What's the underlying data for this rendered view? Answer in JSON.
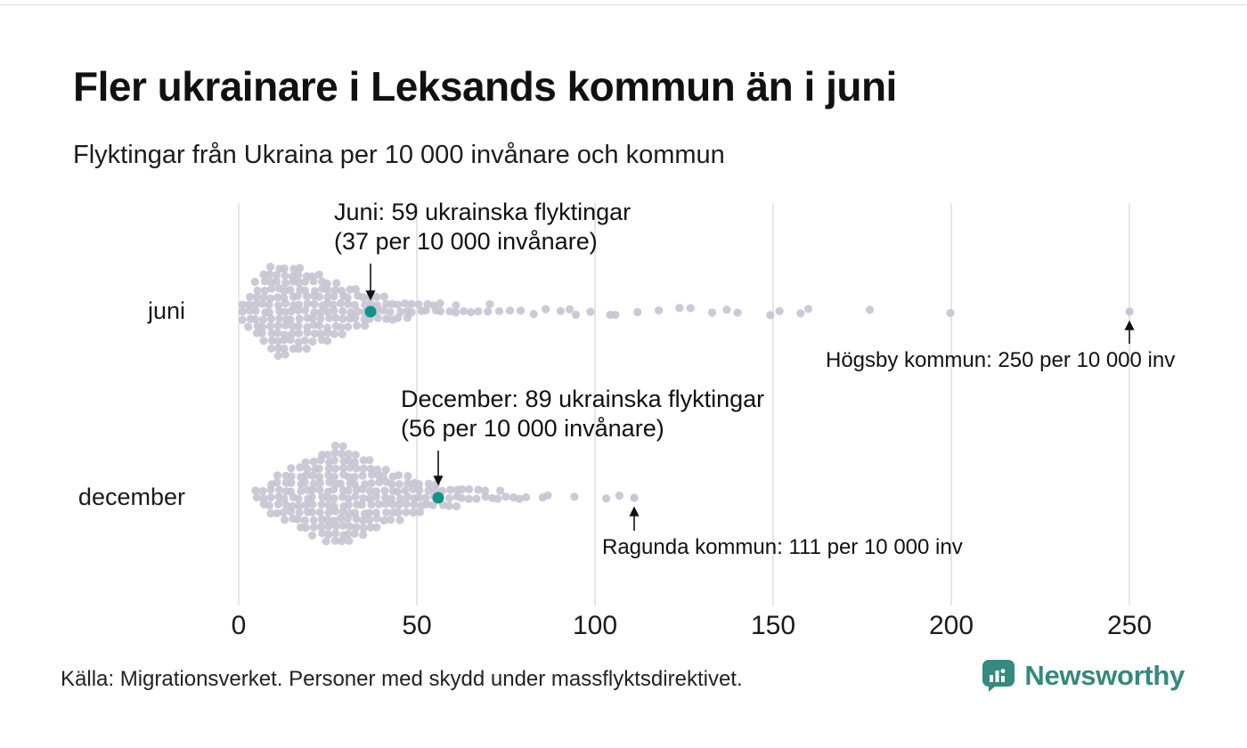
{
  "page": {
    "source": "Källa: Migrationsverket. Personer med skydd under massflyktsdirektivet.",
    "brand": "Newsworthy"
  },
  "colors": {
    "dot": "#c5c4d2",
    "highlight": "#0e9488",
    "grid": "#cccccc",
    "arrow": "#111111",
    "brand": "#35897e"
  },
  "chart_data": {
    "type": "beeswarm",
    "title": "Fler ukrainare i Leksands kommun än i juni",
    "subtitle": "Flyktingar från Ukraina per 10 000 invånare och kommun",
    "unit": "flyktingar per 10 000 invånare och kommun",
    "x_ticks": [
      0,
      50,
      100,
      150,
      200,
      250
    ],
    "xlim": [
      0,
      260
    ],
    "grid": true,
    "rows": [
      {
        "label": "juni",
        "annotation": {
          "line1": "Juni: 59 ukrainska flyktingar",
          "line2": "(37 per 10 000 invånare)",
          "value": 37
        },
        "outlier_annotation": {
          "text": "Högsby kommun: 250 per 10 000 inv",
          "value": 250
        },
        "bins": [
          [
            1,
            3
          ],
          [
            3,
            5
          ],
          [
            5,
            8
          ],
          [
            7,
            10
          ],
          [
            9,
            12
          ],
          [
            11,
            13
          ],
          [
            13,
            13
          ],
          [
            15,
            12
          ],
          [
            17,
            12
          ],
          [
            19,
            11
          ],
          [
            21,
            10
          ],
          [
            23,
            10
          ],
          [
            25,
            9
          ],
          [
            27,
            8
          ],
          [
            29,
            7
          ],
          [
            31,
            6
          ],
          [
            33,
            6
          ],
          [
            35,
            5
          ],
          [
            37,
            4
          ],
          [
            39,
            4
          ],
          [
            41,
            4
          ],
          [
            43,
            3
          ],
          [
            45,
            3
          ],
          [
            47,
            3
          ],
          [
            49,
            2
          ],
          [
            51,
            2
          ],
          [
            53,
            2
          ],
          [
            55,
            2
          ],
          [
            57,
            2
          ],
          [
            59,
            1
          ],
          [
            61,
            2
          ],
          [
            63,
            1
          ],
          [
            65,
            1
          ],
          [
            67,
            1
          ],
          [
            70,
            2
          ],
          [
            73,
            1
          ],
          [
            76,
            1
          ],
          [
            79,
            1
          ]
        ],
        "tail": [
          83,
          86,
          90,
          93,
          95,
          99,
          104,
          106,
          112,
          118,
          124,
          127,
          133,
          137,
          140,
          149,
          152,
          158,
          160,
          177,
          200
        ]
      },
      {
        "label": "december",
        "annotation": {
          "line1": "December: 89 ukrainska flyktingar",
          "line2": "(56 per 10 000 invånare)",
          "value": 56
        },
        "outlier_annotation": {
          "text": "Ragunda kommun: 111 per 10 000 inv",
          "value": 111
        },
        "bins": [
          [
            5,
            2
          ],
          [
            7,
            3
          ],
          [
            9,
            5
          ],
          [
            11,
            6
          ],
          [
            13,
            7
          ],
          [
            15,
            8
          ],
          [
            17,
            9
          ],
          [
            19,
            10
          ],
          [
            21,
            11
          ],
          [
            23,
            12
          ],
          [
            25,
            13
          ],
          [
            27,
            14
          ],
          [
            29,
            14
          ],
          [
            31,
            13
          ],
          [
            33,
            12
          ],
          [
            35,
            11
          ],
          [
            37,
            10
          ],
          [
            39,
            9
          ],
          [
            41,
            8
          ],
          [
            43,
            7
          ],
          [
            45,
            7
          ],
          [
            47,
            6
          ],
          [
            49,
            5
          ],
          [
            51,
            5
          ],
          [
            53,
            4
          ],
          [
            55,
            4
          ],
          [
            57,
            3
          ],
          [
            59,
            3
          ],
          [
            61,
            3
          ],
          [
            63,
            2
          ],
          [
            65,
            2
          ],
          [
            67,
            2
          ],
          [
            69,
            2
          ],
          [
            71,
            1
          ],
          [
            73,
            2
          ],
          [
            75,
            1
          ],
          [
            77,
            1
          ],
          [
            79,
            1
          ],
          [
            81,
            1
          ]
        ],
        "tail": [
          85,
          87,
          94,
          103,
          107
        ]
      }
    ]
  }
}
